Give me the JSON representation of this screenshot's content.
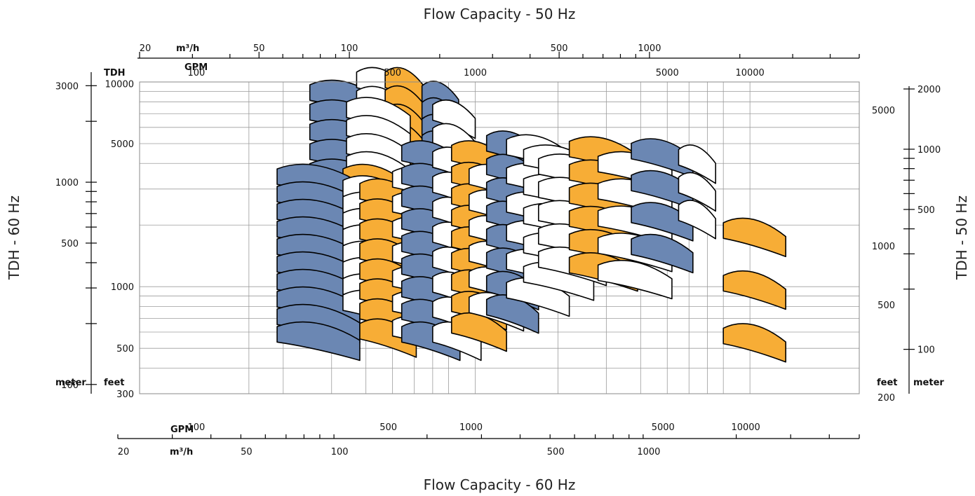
{
  "titles": {
    "top": "Flow Capacity - 50 Hz",
    "bottom": "Flow Capacity - 60 Hz",
    "left": "TDH - 60 Hz",
    "right": "TDH - 50 Hz"
  },
  "units": {
    "top_m3h": "m³/h",
    "top_gpm": "GPM",
    "bottom_gpm": "GPM",
    "bottom_m3h": "m³/h",
    "tdh": "TDH",
    "left_meter": "meter",
    "left_feet": "feet",
    "right_feet": "feet",
    "right_meter": "meter"
  },
  "colors": {
    "blue": "#6b87b3",
    "orange": "#f7ad36",
    "white": "#ffffff",
    "grid": "#9c9c9c"
  },
  "chart_data": {
    "type": "area",
    "description_series": [
      "blue",
      "orange",
      "white"
    ],
    "x_gpm_60hz_ticks": [
      "100",
      "500",
      "1000",
      "5000",
      "10000"
    ],
    "x_m3h_60hz_ticks": [
      "20",
      "50",
      "100",
      "500",
      "1000"
    ],
    "x_gpm_50hz_ticks": [
      "100",
      "500",
      "1000",
      "5000",
      "10000"
    ],
    "x_m3h_50hz_ticks": [
      "20",
      "50",
      "100",
      "500",
      "1000"
    ],
    "y_meter_60hz_ticks": [
      "3000",
      "1000",
      "500",
      "100"
    ],
    "y_feet_60hz_ticks": [
      "10000",
      "5000",
      "1000",
      "500",
      "300"
    ],
    "y_feet_50hz_ticks": [
      "5000",
      "1000",
      "500",
      "200"
    ],
    "y_meter_50hz_ticks": [
      "2000",
      "1000",
      "500",
      "100"
    ],
    "xlim_gpm": [
      60,
      25000
    ],
    "ylim_feet": [
      300,
      10000
    ],
    "grid": true,
    "log_scale": true,
    "families": [
      {
        "color": "blue",
        "count": 5,
        "gpm": [
          250,
          450
        ],
        "head": [
          3500,
          8500
        ]
      },
      {
        "color": "white",
        "count": 5,
        "gpm": [
          370,
          560
        ],
        "head": [
          4200,
          9800
        ]
      },
      {
        "color": "orange",
        "count": 5,
        "gpm": [
          470,
          650
        ],
        "head": [
          4300,
          9800
        ]
      },
      {
        "color": "white",
        "count": 5,
        "gpm": [
          340,
          580
        ],
        "head": [
          3100,
          7000
        ]
      },
      {
        "color": "blue",
        "count": 4,
        "gpm": [
          640,
          870
        ],
        "head": [
          4800,
          8400
        ]
      },
      {
        "color": "white",
        "count": 3,
        "gpm": [
          700,
          1000
        ],
        "head": [
          4000,
          6800
        ]
      },
      {
        "color": "orange",
        "count": 6,
        "gpm": [
          330,
          560
        ],
        "head": [
          1450,
          3300
        ]
      },
      {
        "color": "blue",
        "count": 10,
        "gpm": [
          190,
          380
        ],
        "head": [
          560,
          3300
        ]
      },
      {
        "color": "white",
        "count": 8,
        "gpm": [
          330,
          560
        ],
        "head": [
          800,
          2900
        ]
      },
      {
        "color": "orange",
        "count": 8,
        "gpm": [
          380,
          610
        ],
        "head": [
          580,
          2800
        ]
      },
      {
        "color": "white",
        "count": 7,
        "gpm": [
          500,
          830
        ],
        "head": [
          600,
          3200
        ]
      },
      {
        "color": "blue",
        "count": 9,
        "gpm": [
          540,
          880
        ],
        "head": [
          560,
          4300
        ]
      },
      {
        "color": "white",
        "count": 8,
        "gpm": [
          700,
          1050
        ],
        "head": [
          560,
          4000
        ]
      },
      {
        "color": "orange",
        "count": 9,
        "gpm": [
          820,
          1300
        ],
        "head": [
          620,
          4300
        ]
      },
      {
        "color": "white",
        "count": 6,
        "gpm": [
          950,
          1500
        ],
        "head": [
          780,
          3300
        ]
      },
      {
        "color": "blue",
        "count": 8,
        "gpm": [
          1100,
          1700
        ],
        "head": [
          760,
          4800
        ]
      },
      {
        "color": "white",
        "count": 6,
        "gpm": [
          1300,
          2200
        ],
        "head": [
          920,
          4600
        ]
      },
      {
        "color": "orange",
        "count": 6,
        "gpm": [
          2300,
          2500
        ],
        "head": [
          1450,
          4000
        ]
      },
      {
        "color": "white",
        "count": 5,
        "gpm": [
          1500,
          2700
        ],
        "head": [
          1100,
          4100
        ]
      },
      {
        "color": "blue",
        "count": 5,
        "gpm": [
          2400,
          3500
        ],
        "head": [
          1500,
          4200
        ]
      },
      {
        "color": "white",
        "count": 5,
        "gpm": [
          1700,
          3000
        ],
        "head": [
          1300,
          3700
        ]
      },
      {
        "color": "orange",
        "count": 6,
        "gpm": [
          2200,
          3900
        ],
        "head": [
          1220,
          4500
        ]
      },
      {
        "color": "white",
        "count": 5,
        "gpm": [
          2800,
          5200
        ],
        "head": [
          1120,
          3800
        ]
      },
      {
        "color": "blue",
        "count": 4,
        "gpm": [
          3700,
          6200
        ],
        "head": [
          1500,
          4400
        ]
      },
      {
        "color": "white",
        "count": 3,
        "gpm": [
          5500,
          7500
        ],
        "head": [
          2200,
          4100
        ]
      },
      {
        "color": "orange",
        "count": 3,
        "gpm": [
          8000,
          13500
        ],
        "head": [
          550,
          1800
        ]
      }
    ]
  }
}
